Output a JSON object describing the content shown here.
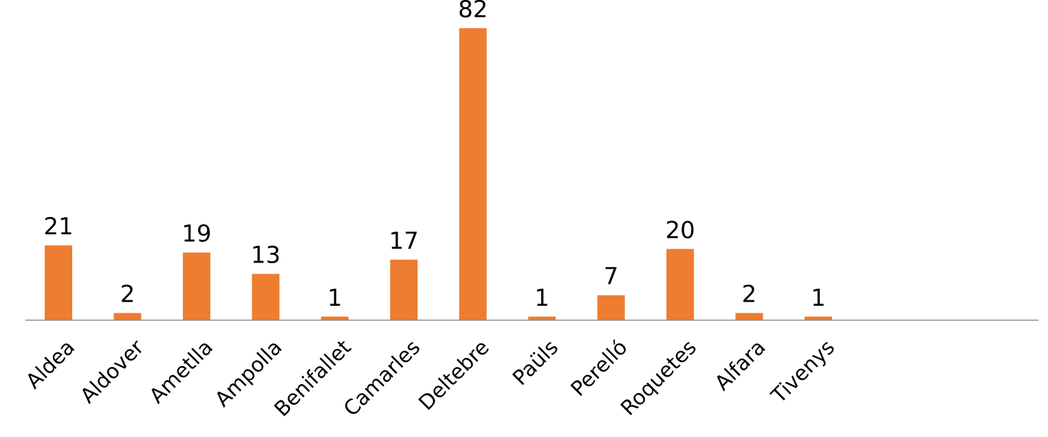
{
  "chart_data": {
    "type": "bar",
    "title": "",
    "xlabel": "",
    "ylabel": "",
    "categories": [
      "Aldea",
      "Aldover",
      "Ametlla",
      "Ampolla",
      "Benifallet",
      "Camarles",
      "Deltebre",
      "Paüls",
      "Perelló",
      "Roquetes",
      "Alfara",
      "Tivenys"
    ],
    "values": [
      21,
      2,
      19,
      13,
      1,
      17,
      82,
      1,
      7,
      20,
      2,
      1
    ],
    "value_labels": [
      "21",
      "2",
      "19",
      "13",
      "1",
      "17",
      "82",
      "1",
      "7",
      "20",
      "2",
      "1"
    ],
    "ylim": [
      0,
      82
    ],
    "grid": false,
    "legend": "none",
    "colors": {
      "bar": "#ED7D31",
      "axis": "#8C8C8C",
      "text": "#000000"
    }
  }
}
